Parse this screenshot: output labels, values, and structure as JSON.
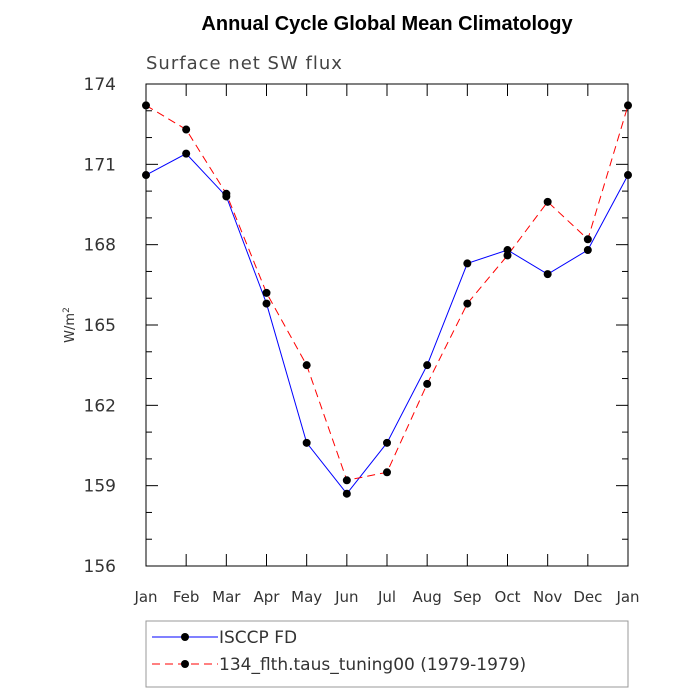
{
  "chart_data": {
    "type": "line",
    "title": "Annual Cycle Global Mean Climatology",
    "subtitle": "Surface net SW flux",
    "ylabel": "W/m",
    "ylabel_sup": "2",
    "xlabel": "",
    "categories": [
      "Jan",
      "Feb",
      "Mar",
      "Apr",
      "May",
      "Jun",
      "Jul",
      "Aug",
      "Sep",
      "Oct",
      "Nov",
      "Dec",
      "Jan"
    ],
    "ylim": [
      156,
      174
    ],
    "yticks": [
      174,
      171,
      168,
      165,
      162,
      159,
      156
    ],
    "grid": false,
    "legend_position": "bottom",
    "series": [
      {
        "name": "ISCCP FD",
        "color": "#0000ff",
        "dash": "solid",
        "values": [
          170.6,
          171.4,
          169.8,
          165.8,
          160.6,
          158.7,
          160.6,
          163.5,
          167.3,
          167.8,
          166.9,
          167.8,
          170.6
        ]
      },
      {
        "name": "134_flth.taus_tuning00 (1979-1979)",
        "color": "#ff0000",
        "dash": "dashed",
        "values": [
          173.2,
          172.3,
          169.9,
          166.2,
          163.5,
          159.2,
          159.5,
          162.8,
          165.8,
          167.6,
          169.6,
          168.2,
          173.2
        ]
      }
    ]
  }
}
